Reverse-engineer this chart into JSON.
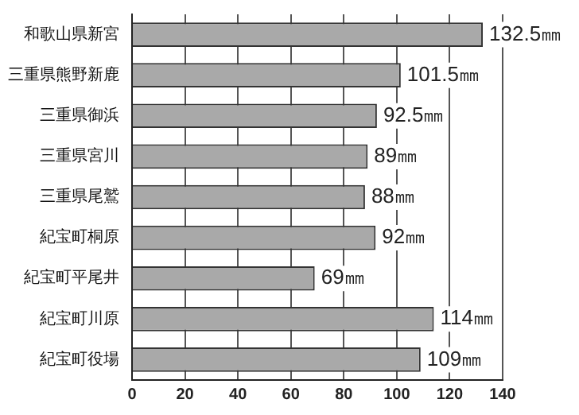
{
  "chart_data": {
    "type": "bar",
    "orientation": "horizontal",
    "categories": [
      "和歌山県新宮",
      "三重県熊野新鹿",
      "三重県御浜",
      "三重県宮川",
      "三重県尾鷲",
      "紀宝町桐原",
      "紀宝町平尾井",
      "紀宝町川原",
      "紀宝町役場"
    ],
    "values": [
      132.5,
      101.5,
      92.5,
      89,
      88,
      92,
      69,
      114,
      109
    ],
    "value_labels": [
      "132.5㎜",
      "101.5㎜",
      "92.5㎜",
      "89㎜",
      "88㎜",
      "92㎜",
      "69㎜",
      "114㎜",
      "109㎜"
    ],
    "color": "#a9a9a9",
    "xlim": [
      0,
      140
    ],
    "xticks": [
      0,
      20,
      40,
      60,
      80,
      100,
      120,
      140
    ],
    "grid": "x"
  }
}
